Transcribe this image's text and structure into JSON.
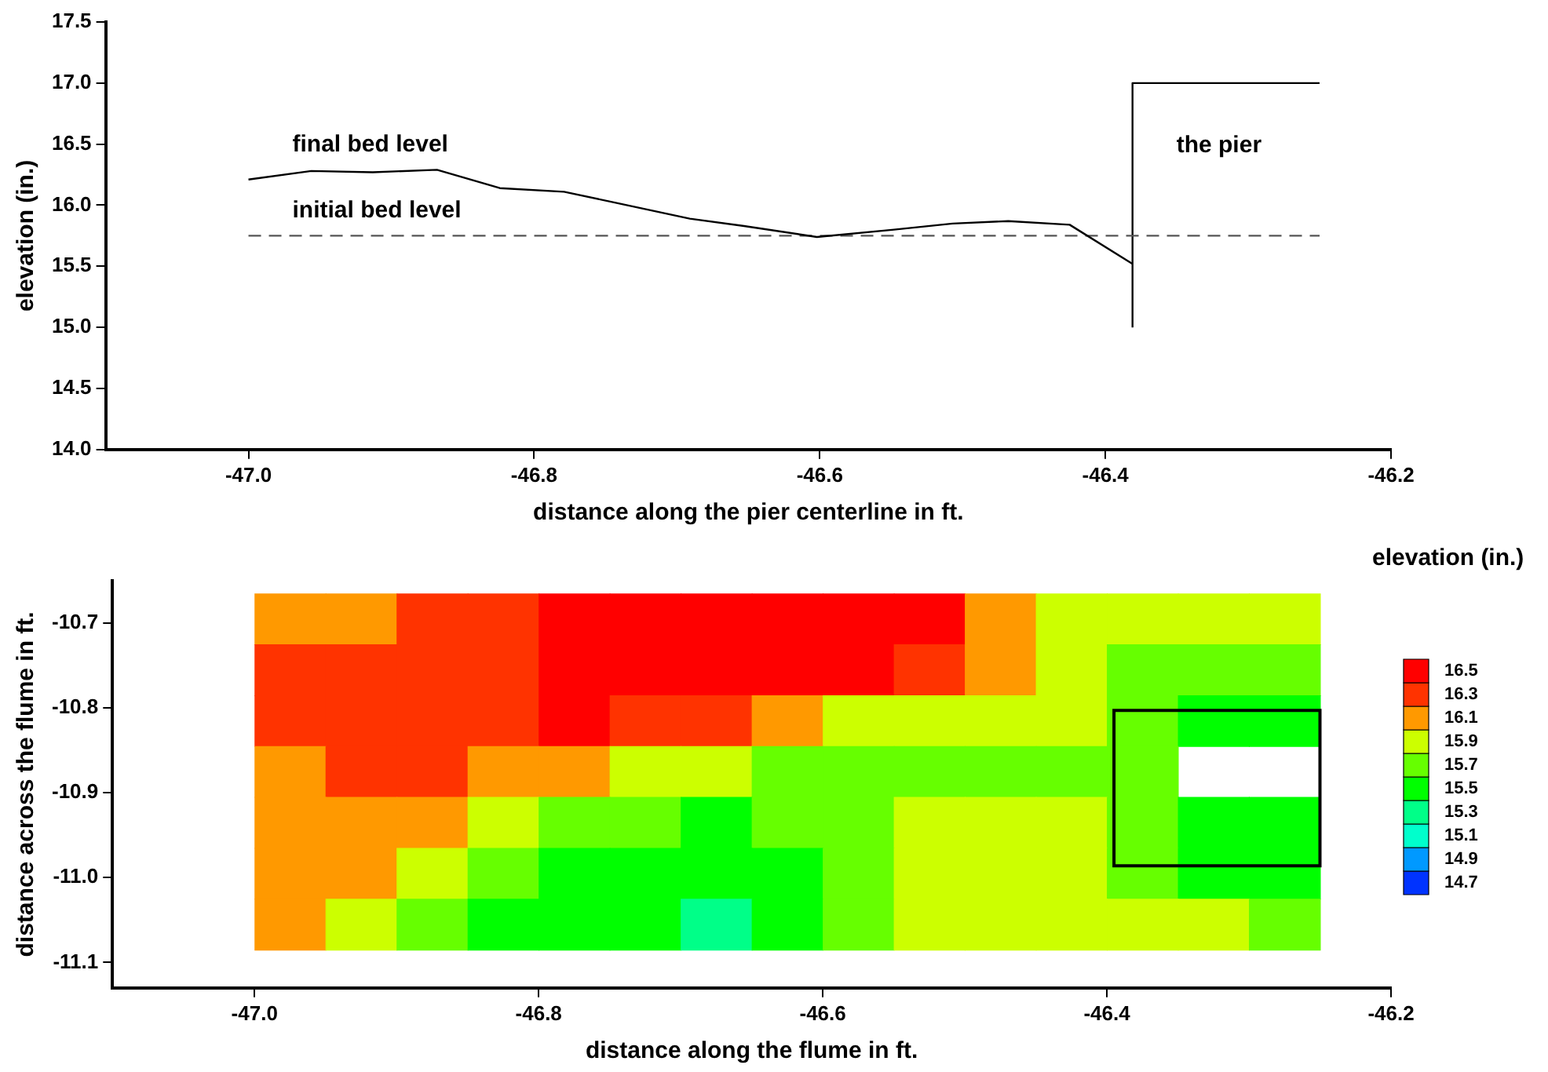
{
  "chart_data": [
    {
      "type": "line",
      "xlabel": "distance along the pier centerline in ft.",
      "ylabel": "elevation (in.)",
      "xlim": [
        -47.1,
        -46.2
      ],
      "xticks": [
        {
          "value": -47,
          "label": "-47.0"
        },
        -46.8,
        -46.6,
        -46.4,
        -46.2
      ],
      "ylim": [
        14,
        17.5
      ],
      "yticks": [
        {
          "value": 14,
          "label": "14.0"
        },
        14.5,
        {
          "value": 15,
          "label": "15.0"
        },
        15.5,
        {
          "value": 16,
          "label": "16.0"
        },
        16.5,
        {
          "value": 17,
          "label": "17.0"
        },
        17.5
      ],
      "series": [
        {
          "name": "final bed level",
          "color": "#000000",
          "line_style": "solid",
          "x": [
            -47.0,
            -46.956,
            -46.913,
            -46.868,
            -46.824,
            -46.779,
            -46.691,
            -46.653,
            -46.602,
            -46.548,
            -46.507,
            -46.468,
            -46.425,
            -46.381
          ],
          "values": [
            16.21,
            16.28,
            16.27,
            16.29,
            16.14,
            16.11,
            15.89,
            15.83,
            15.74,
            15.8,
            15.85,
            15.87,
            15.84,
            15.52
          ]
        },
        {
          "name": "initial bed level",
          "color": "#555555",
          "line_style": "dashed",
          "x": [
            -47.0,
            -46.25
          ],
          "values": [
            15.75,
            15.75
          ]
        },
        {
          "name": "the pier",
          "color": "#000000",
          "line_style": "solid",
          "x": [
            -46.381,
            -46.381,
            -46.25
          ],
          "values": [
            15.0,
            17.0,
            17.0
          ]
        }
      ],
      "grid": false,
      "legend": false,
      "marker": "none"
    },
    {
      "type": "heatmap",
      "xlabel": "distance along the flume in ft.",
      "ylabel": "distance across the flume in ft.",
      "clabel": "elevation (in.)",
      "xlim": [
        -47.1,
        -46.2
      ],
      "xticks": [
        {
          "value": -47,
          "label": "-47.0"
        },
        -46.8,
        -46.6,
        -46.4,
        -46.2
      ],
      "ylim": [
        -11.13,
        -10.65
      ],
      "yticks": [
        -11.1,
        {
          "value": -11,
          "label": "-11.0"
        },
        -10.9,
        -10.8,
        -10.7
      ],
      "x": [
        -46.975,
        -46.925,
        -46.875,
        -46.825,
        -46.775,
        -46.725,
        -46.675,
        -46.625,
        -46.575,
        -46.525,
        -46.475,
        -46.425,
        -46.375,
        -46.325,
        -46.275
      ],
      "y": [
        -10.695,
        -10.755,
        -10.815,
        -10.875,
        -10.935,
        -10.995,
        -11.055
      ],
      "cells": [
        [
          16.1,
          16.1,
          16.3,
          16.3,
          16.5,
          16.5,
          16.5,
          16.5,
          16.5,
          16.5,
          16.1,
          15.9,
          15.9,
          15.9,
          15.9
        ],
        [
          16.3,
          16.3,
          16.3,
          16.3,
          16.5,
          16.5,
          16.5,
          16.5,
          16.5,
          16.3,
          16.1,
          15.9,
          15.7,
          15.7,
          15.7
        ],
        [
          16.3,
          16.3,
          16.3,
          16.3,
          16.5,
          16.3,
          16.3,
          16.1,
          15.9,
          15.9,
          15.9,
          15.9,
          15.7,
          15.5,
          15.5
        ],
        [
          16.1,
          16.3,
          16.3,
          16.1,
          16.1,
          15.9,
          15.9,
          15.7,
          15.7,
          15.7,
          15.7,
          15.7,
          15.7,
          null,
          null
        ],
        [
          16.1,
          16.1,
          16.1,
          15.9,
          15.7,
          15.7,
          15.5,
          15.7,
          15.7,
          15.9,
          15.9,
          15.9,
          15.7,
          15.5,
          15.5
        ],
        [
          16.1,
          16.1,
          15.9,
          15.7,
          15.5,
          15.5,
          15.5,
          15.5,
          15.7,
          15.9,
          15.9,
          15.9,
          15.7,
          15.5,
          15.5
        ],
        [
          16.1,
          15.9,
          15.7,
          15.5,
          15.5,
          15.5,
          15.3,
          15.5,
          15.7,
          15.9,
          15.9,
          15.9,
          15.9,
          15.9,
          15.7
        ]
      ],
      "clim": [
        14.6,
        16.6
      ],
      "cticks": [
        14.7,
        14.9,
        15.1,
        15.3,
        15.5,
        15.7,
        15.9,
        16.1,
        16.3,
        16.5
      ],
      "grid": false
    }
  ]
}
